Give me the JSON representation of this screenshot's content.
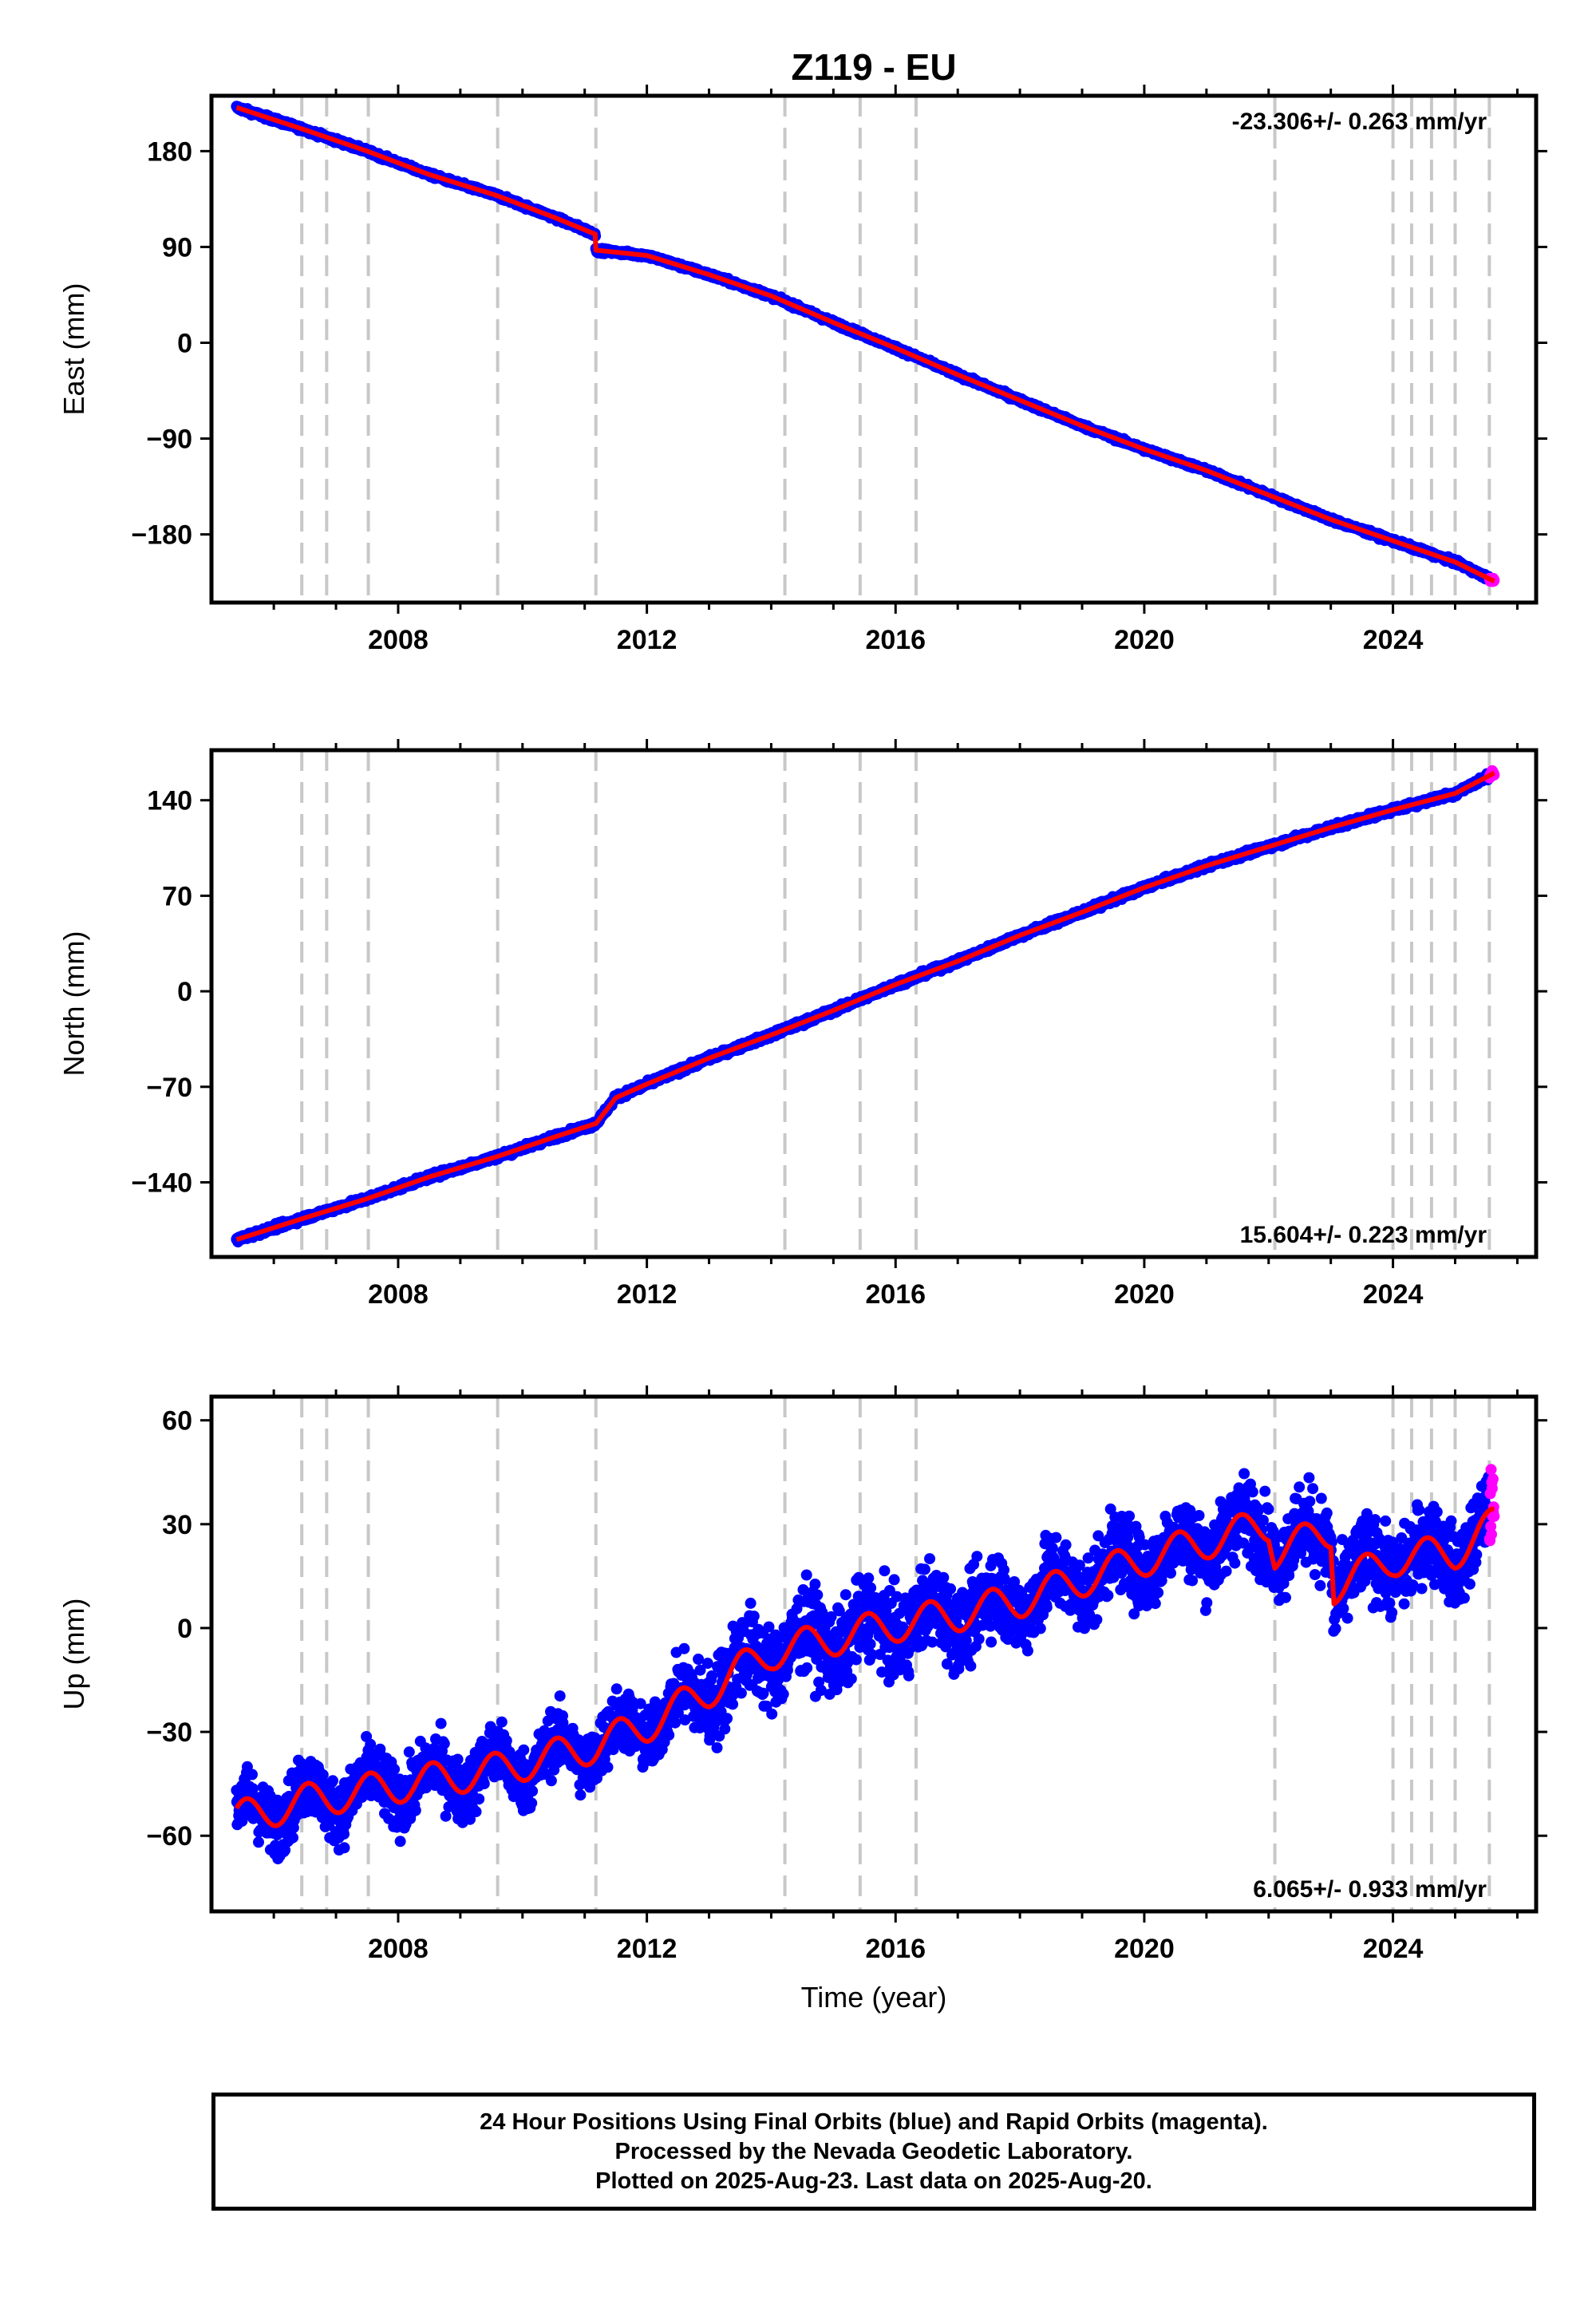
{
  "footer": {
    "line1": "24 Hour Positions Using Final Orbits (blue) and Rapid Orbits (magenta).",
    "line2": "Processed by the Nevada Geodetic Laboratory.",
    "line3": "Plotted on 2025-Aug-23. Last data on 2025-Aug-20."
  },
  "colors": {
    "final_orbits": "#0000ff",
    "rapid_orbits": "#ff00ff",
    "model": "#ff0000",
    "event_lines": "#c8c8c8"
  },
  "chart_data": {
    "type": "scatter",
    "title": "Z119 - EU",
    "xlabel": "Time (year)",
    "xlim": [
      2005.1,
      2026.2
    ],
    "xticks": [
      2008,
      2012,
      2016,
      2020,
      2024
    ],
    "xtick_labels": [
      "2008",
      "2012",
      "2016",
      "2020",
      "2024"
    ],
    "event_lines": [
      2006.45,
      2006.85,
      2007.52,
      2009.6,
      2011.18,
      2014.22,
      2015.43,
      2016.33,
      2022.1,
      2024.0,
      2024.3,
      2024.62,
      2025.0,
      2025.55
    ],
    "data_start": 2005.4,
    "data_end": 2025.63,
    "rapid_start": 2025.55,
    "panels": [
      {
        "name": "east",
        "ylabel": "East (mm)",
        "ylim": [
          -238,
          226
        ],
        "yticks": [
          180,
          90,
          0,
          -90,
          -180
        ],
        "ytick_labels": [
          "180",
          "90",
          "0",
          "−90",
          "−180"
        ],
        "rate_label": "-23.306+/- 0.263 mm/yr",
        "rate_position": "top-right",
        "trend": [
          [
            2005.4,
            221
          ],
          [
            2006.5,
            200
          ],
          [
            2007.5,
            180
          ],
          [
            2008.5,
            158
          ],
          [
            2009.6,
            138
          ],
          [
            2010.5,
            118
          ],
          [
            2011.17,
            102
          ],
          [
            2011.18,
            87
          ],
          [
            2012.0,
            82
          ],
          [
            2013.0,
            64
          ],
          [
            2014.0,
            44
          ],
          [
            2015.0,
            19
          ],
          [
            2016.0,
            -5
          ],
          [
            2017.0,
            -30
          ],
          [
            2018.0,
            -54
          ],
          [
            2019.0,
            -78
          ],
          [
            2020.0,
            -100
          ],
          [
            2021.0,
            -120
          ],
          [
            2022.0,
            -143
          ],
          [
            2023.0,
            -166
          ],
          [
            2024.0,
            -186
          ],
          [
            2025.0,
            -206
          ],
          [
            2025.63,
            -224
          ]
        ]
      },
      {
        "name": "north",
        "ylabel": "North (mm)",
        "ylim": [
          -190,
          172
        ],
        "yticks": [
          140,
          70,
          0,
          -70,
          -140
        ],
        "ytick_labels": [
          "140",
          "70",
          "0",
          "−70",
          "−140"
        ],
        "rate_label": "15.604+/- 0.223 mm/yr",
        "rate_position": "bottom-right",
        "trend": [
          [
            2005.4,
            -182
          ],
          [
            2006.5,
            -166
          ],
          [
            2007.5,
            -152
          ],
          [
            2008.5,
            -136
          ],
          [
            2009.6,
            -121
          ],
          [
            2010.5,
            -107
          ],
          [
            2011.17,
            -97
          ],
          [
            2011.18,
            -97
          ],
          [
            2011.5,
            -78
          ],
          [
            2012.0,
            -68
          ],
          [
            2013.0,
            -49
          ],
          [
            2014.0,
            -32
          ],
          [
            2015.0,
            -14
          ],
          [
            2016.0,
            5
          ],
          [
            2017.0,
            22
          ],
          [
            2018.0,
            41
          ],
          [
            2019.0,
            58
          ],
          [
            2020.0,
            76
          ],
          [
            2021.0,
            92
          ],
          [
            2022.0,
            106
          ],
          [
            2023.0,
            120
          ],
          [
            2024.0,
            133
          ],
          [
            2025.0,
            145
          ],
          [
            2025.63,
            160
          ]
        ]
      },
      {
        "name": "up",
        "ylabel": "Up (mm)",
        "ylim": [
          -80,
          65
        ],
        "yticks": [
          60,
          30,
          0,
          -30,
          -60
        ],
        "ytick_labels": [
          "60",
          "30",
          "0",
          "−30",
          "−60"
        ],
        "rate_label": "6.065+/- 0.933 mm/yr",
        "rate_position": "bottom-right",
        "trend": [
          [
            2005.4,
            -55
          ],
          [
            2006.5,
            -50
          ],
          [
            2007.5,
            -47
          ],
          [
            2008.5,
            -44
          ],
          [
            2009.6,
            -41
          ],
          [
            2010.5,
            -37
          ],
          [
            2011.17,
            -34
          ],
          [
            2012.0,
            -28
          ],
          [
            2012.6,
            -22
          ],
          [
            2013.0,
            -18
          ],
          [
            2013.5,
            -12
          ],
          [
            2014.0,
            -7
          ],
          [
            2015.0,
            -3
          ],
          [
            2016.0,
            1
          ],
          [
            2017.0,
            4
          ],
          [
            2018.0,
            8
          ],
          [
            2019.0,
            14
          ],
          [
            2020.0,
            20
          ],
          [
            2021.0,
            25
          ],
          [
            2022.0,
            30
          ],
          [
            2022.1,
            22
          ],
          [
            2023.0,
            28
          ],
          [
            2023.05,
            12
          ],
          [
            2024.0,
            20
          ],
          [
            2025.0,
            22
          ],
          [
            2025.63,
            30
          ]
        ],
        "seasonal_amplitude": 5,
        "scatter_spread": [
          [
            2005.4,
            10
          ],
          [
            2012.5,
            10
          ],
          [
            2013.0,
            14
          ],
          [
            2020.0,
            12
          ],
          [
            2023.0,
            13
          ],
          [
            2025.63,
            12
          ]
        ]
      }
    ]
  }
}
